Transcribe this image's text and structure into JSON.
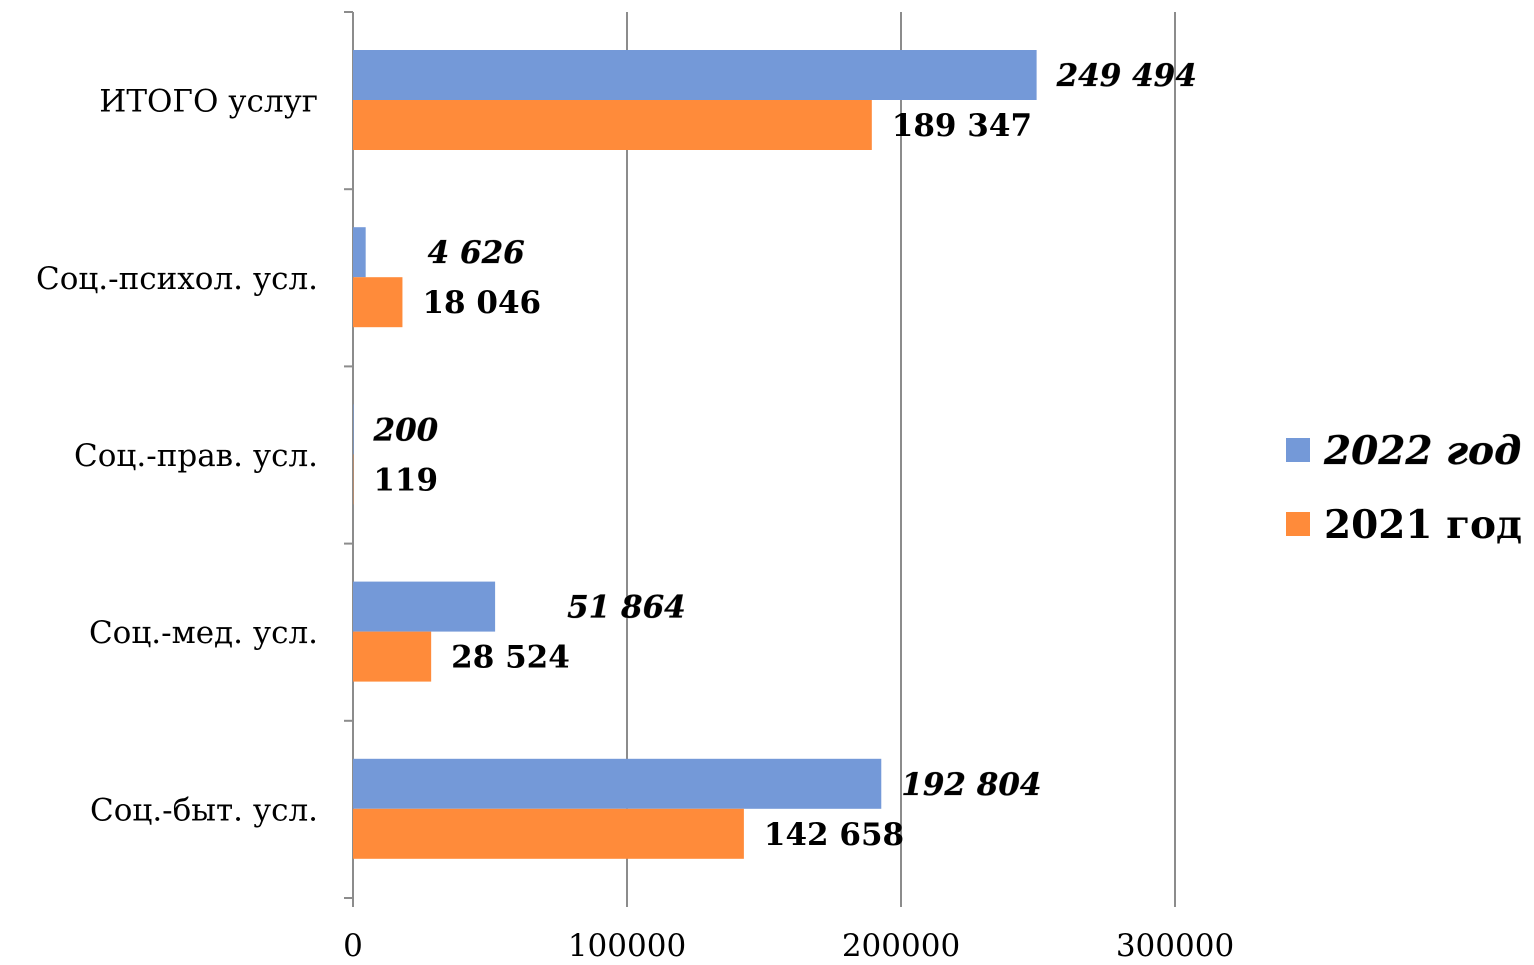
{
  "chart_data": {
    "type": "bar",
    "orientation": "horizontal",
    "categories": [
      "ИТОГО услуг",
      "Соц.-психол. усл.",
      "Соц.-прав. усл.",
      "Соц.-мед. усл.",
      "Соц.-быт. усл."
    ],
    "series": [
      {
        "name": "2022 год",
        "color": "#7499D8",
        "values": [
          249494,
          4626,
          200,
          51864,
          192804
        ],
        "labels": [
          "249 494",
          "4 626",
          "200",
          "51 864",
          "192 804"
        ]
      },
      {
        "name": "2021 год",
        "color": "#FF8B3A",
        "values": [
          189347,
          18046,
          119,
          28524,
          142658
        ],
        "labels": [
          "189 347",
          "18 046",
          "119",
          "28 524",
          "142 658"
        ]
      }
    ],
    "xlim": [
      0,
      300000
    ],
    "xticks": [
      0,
      100000,
      200000,
      300000
    ],
    "xtick_labels": [
      "0",
      "100000",
      "200000",
      "300000"
    ],
    "grid": "vertical",
    "legend_position": "right"
  }
}
